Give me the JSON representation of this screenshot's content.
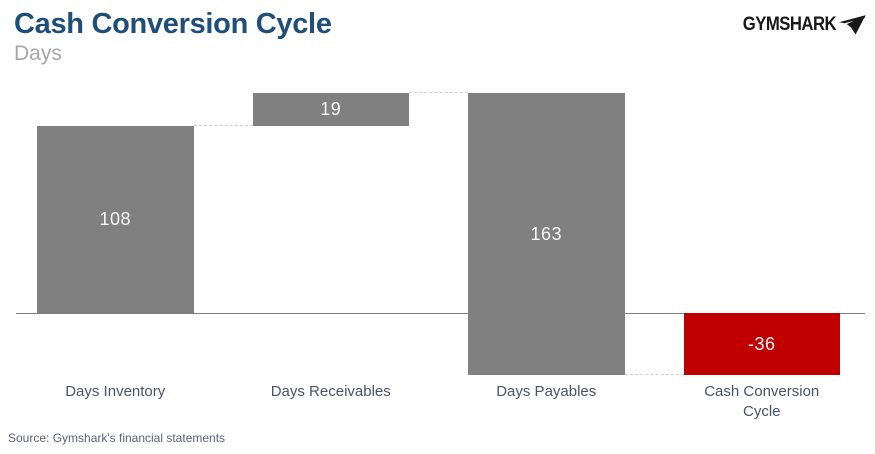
{
  "header": {
    "title": "Cash Conversion Cycle",
    "subtitle": "Days",
    "brand": "GYMSHARK"
  },
  "chart_data": {
    "type": "bar",
    "variant": "waterfall",
    "title": "Cash Conversion Cycle",
    "unit": "Days",
    "categories": [
      "Days Inventory",
      "Days Receivables",
      "Days Payables",
      "Cash Conversion Cycle"
    ],
    "values": [
      108,
      19,
      -163,
      -36
    ],
    "bars": [
      {
        "category": "Days Inventory",
        "label": "108",
        "from": 0,
        "to": 108,
        "color": "#808080"
      },
      {
        "category": "Days Receivables",
        "label": "19",
        "from": 108,
        "to": 127,
        "color": "#808080"
      },
      {
        "category": "Days Payables",
        "label": "163",
        "from": 127,
        "to": -36,
        "color": "#808080"
      },
      {
        "category": "Cash Conversion Cycle",
        "label": "-36",
        "from": 0,
        "to": -36,
        "color": "#C00000"
      }
    ],
    "axis": {
      "zero_line": true,
      "ylim": [
        -40,
        130
      ],
      "gridlines": false,
      "connectors": "dashed"
    },
    "legend": "none"
  },
  "colors": {
    "title": "#1F4E79",
    "subtitle": "#A6A6A6",
    "bar_gray": "#808080",
    "bar_negative": "#C00000",
    "value_label": "#F7F7F7",
    "category_label": "#44546A",
    "axis_line": "#7F7F7F",
    "connector": "#CCCCCC",
    "brand": "#181818"
  },
  "footer": {
    "source": "Source: Gymshark's financial statements"
  }
}
